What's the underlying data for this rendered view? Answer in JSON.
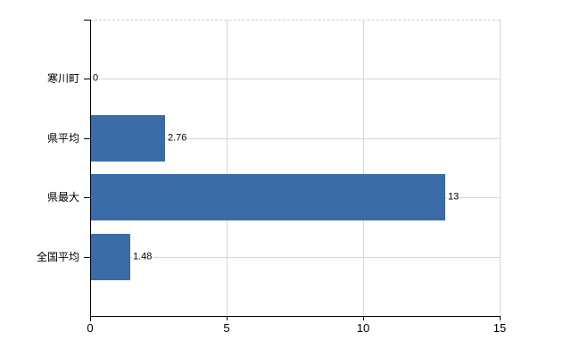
{
  "chart_data": {
    "type": "bar",
    "orientation": "horizontal",
    "title": "",
    "categories": [
      "寒川町",
      "県平均",
      "県最大",
      "全国平均"
    ],
    "values": [
      0,
      2.76,
      13,
      1.48
    ],
    "value_labels": [
      "0",
      "2.76",
      "13",
      "1.48"
    ],
    "xlim": [
      0,
      15
    ],
    "x_ticks": [
      0,
      5,
      10,
      15
    ],
    "x_tick_labels": [
      "0",
      "5",
      "10",
      "15"
    ],
    "bar_color": "#3c6ca8",
    "gridline_color": "#d6d6d6",
    "axis_color": "#000000",
    "grid": true,
    "legend_position": "none"
  }
}
